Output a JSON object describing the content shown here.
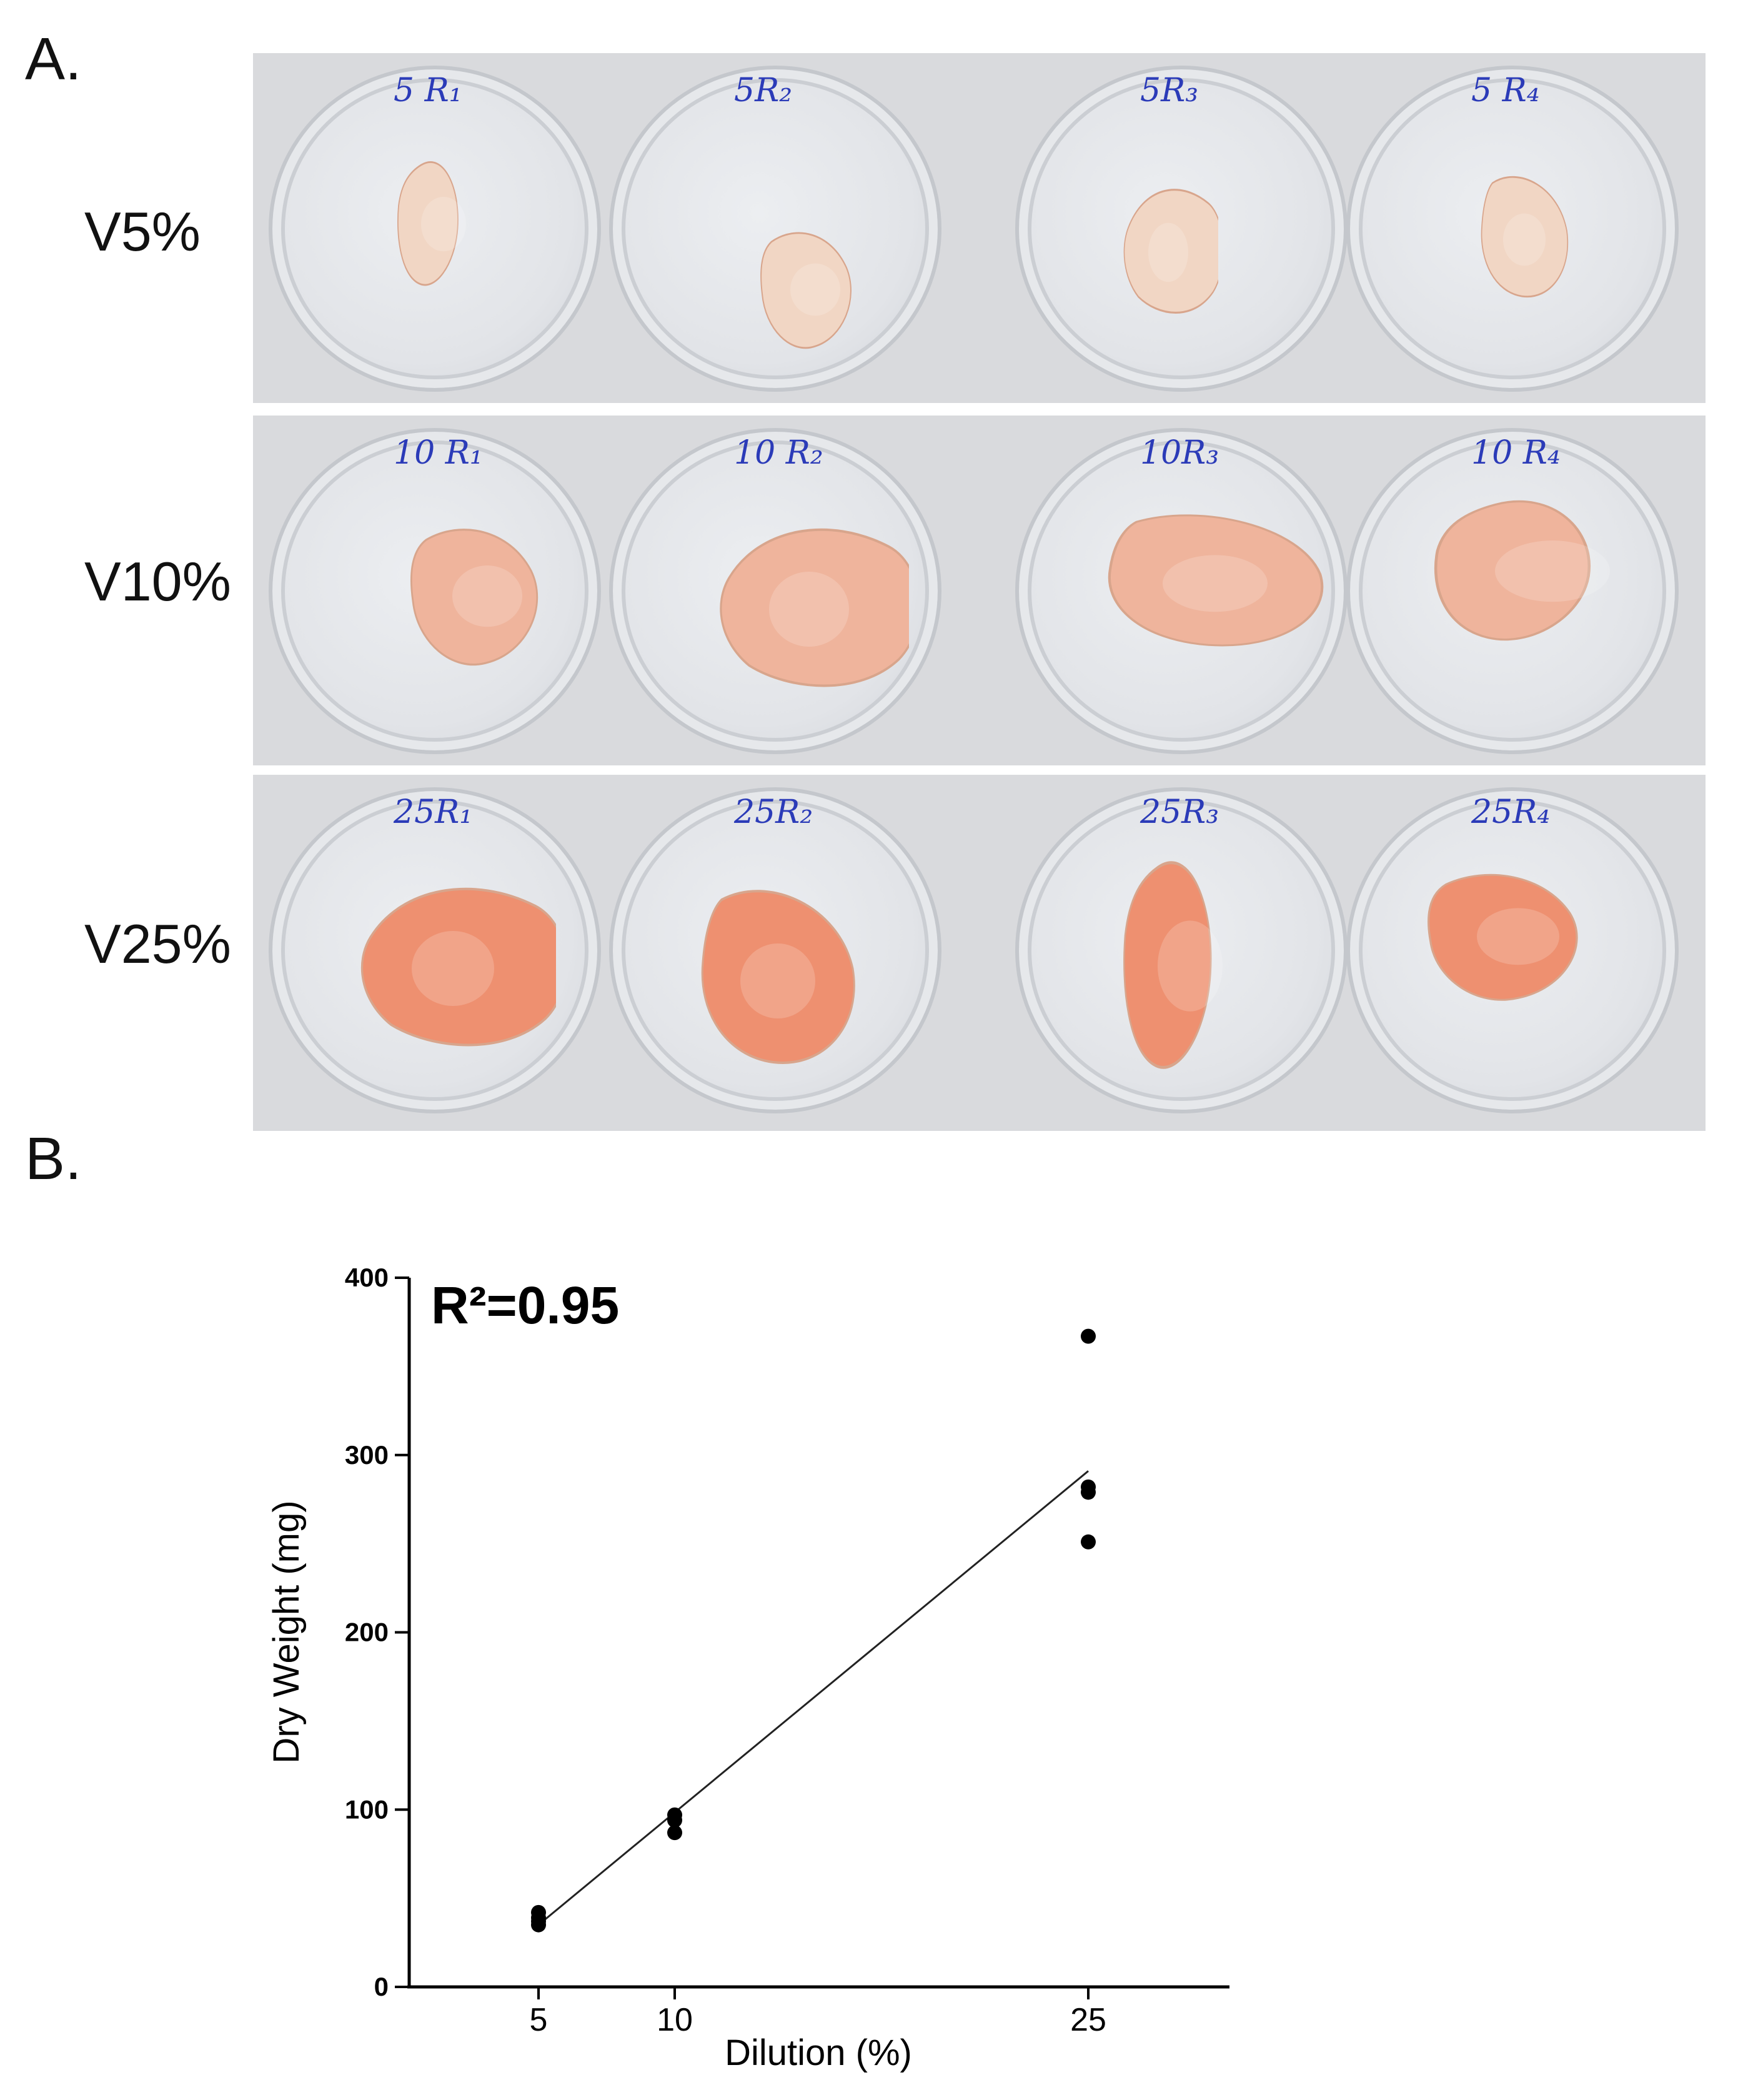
{
  "panel_a": {
    "letter": "A.",
    "rows": [
      {
        "label": "V5%",
        "dishes": [
          "5 R₁",
          "5R₂",
          "5R₃",
          "5 R₄"
        ],
        "tissue_color": "#f1d6c4"
      },
      {
        "label": "V10%",
        "dishes": [
          "10 R₁",
          "10 R₂",
          "10R₃",
          "10 R₄"
        ],
        "tissue_color": "#efb49c"
      },
      {
        "label": "V25%",
        "dishes": [
          "25R₁",
          "25R₂",
          "25R₃",
          "25R₄"
        ],
        "tissue_color": "#ee9070"
      }
    ]
  },
  "panel_b": {
    "letter": "B."
  },
  "chart_data": {
    "type": "scatter",
    "annotation": "R²=0.95",
    "xlabel": "Dilution (%)",
    "ylabel": "Dry Weight (mg)",
    "xticks": [
      "5",
      "10",
      "25"
    ],
    "yticks": [
      "0",
      "100",
      "200",
      "300",
      "400"
    ],
    "xlim": [
      0,
      30
    ],
    "ylim": [
      0,
      400
    ],
    "points": [
      {
        "x": 5,
        "y": 42
      },
      {
        "x": 5,
        "y": 39
      },
      {
        "x": 5,
        "y": 37
      },
      {
        "x": 5,
        "y": 35
      },
      {
        "x": 10,
        "y": 97
      },
      {
        "x": 10,
        "y": 94
      },
      {
        "x": 10,
        "y": 87
      },
      {
        "x": 25,
        "y": 367
      },
      {
        "x": 25,
        "y": 282
      },
      {
        "x": 25,
        "y": 279
      },
      {
        "x": 25,
        "y": 251
      }
    ],
    "fit_line": {
      "x": [
        5,
        25
      ],
      "y": [
        35,
        291
      ]
    },
    "point_color": "#000000"
  }
}
